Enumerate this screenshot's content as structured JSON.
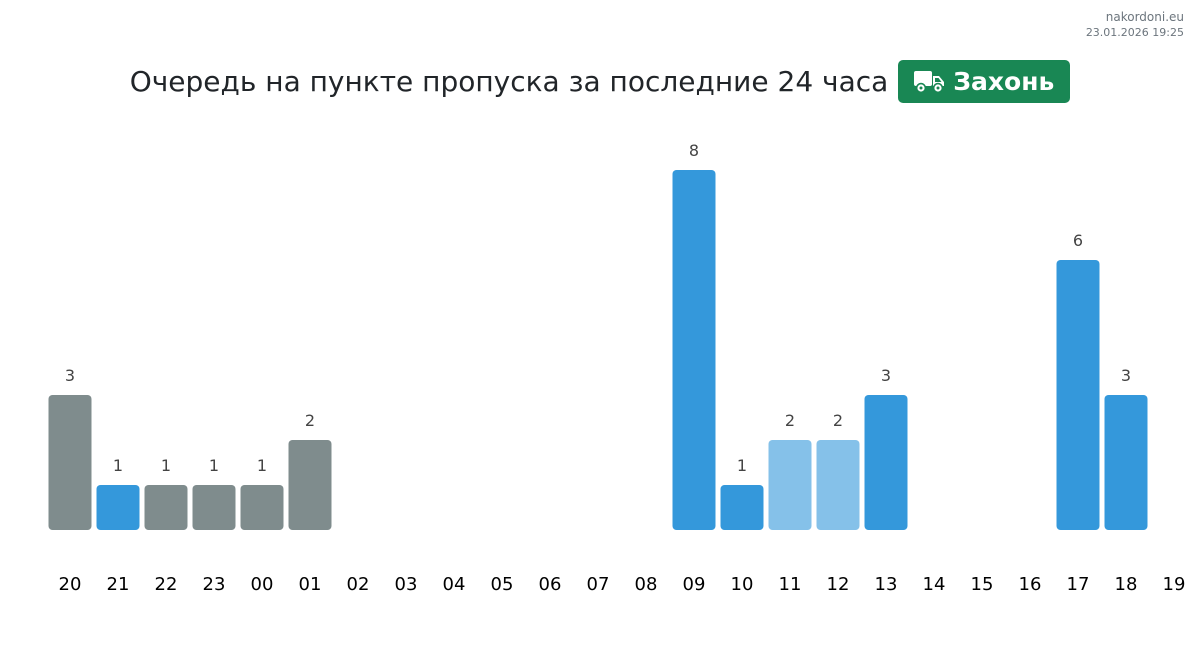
{
  "watermark": {
    "site": "nakordoni.eu",
    "timestamp": "23.01.2026 19:25"
  },
  "header": {
    "title": "Очередь на пункте пропуска за последние 24 часа",
    "badge_label": "Захонь",
    "badge_icon": "truck-icon",
    "badge_color": "#198754"
  },
  "chart_data": {
    "type": "bar",
    "title": "",
    "xlabel": "",
    "ylabel": "",
    "ylim": [
      0,
      8
    ],
    "grid": false,
    "legend": "none",
    "colors": {
      "gray": "#7f8c8d",
      "blue": "#3498db",
      "light": "#85c1e9"
    },
    "categories": [
      "20",
      "21",
      "22",
      "23",
      "00",
      "01",
      "02",
      "03",
      "04",
      "05",
      "06",
      "07",
      "08",
      "09",
      "10",
      "11",
      "12",
      "13",
      "14",
      "15",
      "16",
      "17",
      "18",
      "19"
    ],
    "values": [
      3,
      1,
      1,
      1,
      1,
      2,
      null,
      null,
      null,
      null,
      null,
      null,
      null,
      8,
      1,
      2,
      2,
      3,
      null,
      null,
      null,
      6,
      3,
      null
    ],
    "bar_colors": [
      "gray",
      "blue",
      "gray",
      "gray",
      "gray",
      "gray",
      null,
      null,
      null,
      null,
      null,
      null,
      null,
      "blue",
      "blue",
      "light",
      "light",
      "blue",
      null,
      null,
      null,
      "blue",
      "blue",
      null
    ]
  }
}
